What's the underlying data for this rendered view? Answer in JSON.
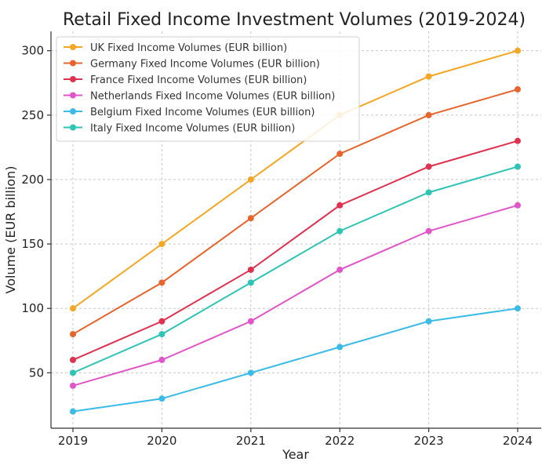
{
  "chart_data": {
    "type": "line",
    "title": "Retail Fixed Income Investment Volumes (2019-2024)",
    "xlabel": "Year",
    "ylabel": "Volume (EUR billion)",
    "categories": [
      "2019",
      "2020",
      "2021",
      "2022",
      "2023",
      "2024"
    ],
    "ylim": [
      7,
      315
    ],
    "yticks": [
      50,
      100,
      150,
      200,
      250,
      300
    ],
    "grid": true,
    "legend_position": "top-left",
    "series": [
      {
        "name": "UK Fixed Income Volumes (EUR billion)",
        "color": "#f5a623",
        "values": [
          100,
          150,
          200,
          250,
          280,
          300
        ]
      },
      {
        "name": "Germany Fixed Income Volumes (EUR billion)",
        "color": "#e8642c",
        "values": [
          80,
          120,
          170,
          220,
          250,
          270
        ]
      },
      {
        "name": "France Fixed Income Volumes (EUR billion)",
        "color": "#e0314f",
        "values": [
          60,
          90,
          130,
          180,
          210,
          230
        ]
      },
      {
        "name": "Netherlands Fixed Income Volumes (EUR billion)",
        "color": "#e255c8",
        "values": [
          40,
          60,
          90,
          130,
          160,
          180
        ]
      },
      {
        "name": "Belgium Fixed Income Volumes (EUR billion)",
        "color": "#3bbbe8",
        "values": [
          20,
          30,
          50,
          70,
          90,
          100
        ]
      },
      {
        "name": "Italy Fixed Income Volumes (EUR billion)",
        "color": "#2ec4b6",
        "values": [
          50,
          80,
          120,
          160,
          190,
          210
        ]
      }
    ]
  }
}
